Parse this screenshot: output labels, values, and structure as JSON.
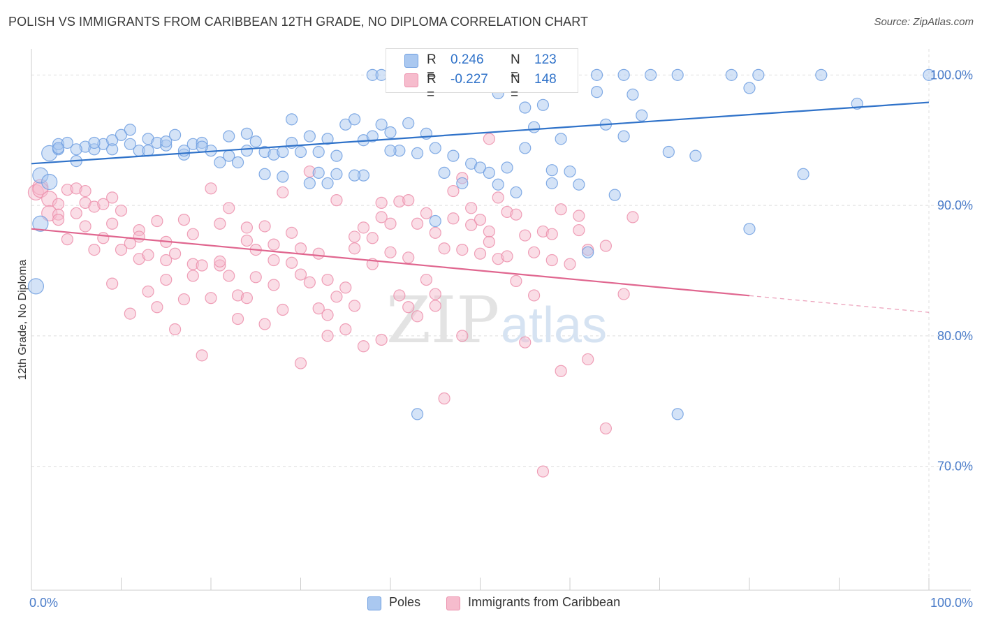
{
  "header": {
    "title": "POLISH VS IMMIGRANTS FROM CARIBBEAN 12TH GRADE, NO DIPLOMA CORRELATION CHART",
    "source": "Source: ZipAtlas.com"
  },
  "watermark": {
    "zip": "ZIP",
    "atlas": "atlas"
  },
  "legend": {
    "rows": [
      {
        "r_label": "R =",
        "r_value": "0.246",
        "n_label": "N =",
        "n_value": "123"
      },
      {
        "r_label": "R =",
        "r_value": "-0.227",
        "n_label": "N =",
        "n_value": "148"
      }
    ]
  },
  "bottom_legend": {
    "poles": "Poles",
    "caribbean": "Immigrants from Caribbean"
  },
  "colors": {
    "blue_fill": "#aac8f0",
    "blue_stroke": "#6d9ee0",
    "blue_line": "#2f72c9",
    "pink_fill": "#f6bccd",
    "pink_stroke": "#ec8fac",
    "pink_line": "#e0668f",
    "tick_text": "#4a7cc9",
    "grid": "#dddddd"
  },
  "chart_data": {
    "type": "scatter",
    "title": "POLISH VS IMMIGRANTS FROM CARIBBEAN 12TH GRADE, NO DIPLOMA CORRELATION CHART",
    "xlabel": "",
    "ylabel": "12th Grade, No Diploma",
    "xlim": [
      0,
      100
    ],
    "ylim": [
      60.5,
      102
    ],
    "x_tick_labels": [
      "0.0%",
      "100.0%"
    ],
    "y_ticks": [
      70,
      80,
      90,
      100
    ],
    "y_tick_labels": [
      "70.0%",
      "80.0%",
      "90.0%",
      "100.0%"
    ],
    "grid": true,
    "legend_position": "top-center",
    "series": [
      {
        "name": "Poles",
        "r": 0.246,
        "n": 123,
        "trend": {
          "x": [
            0,
            100
          ],
          "y": [
            93.2,
            97.9
          ],
          "dashed_from": null
        },
        "points": [
          [
            1,
            92.3
          ],
          [
            1,
            88.6
          ],
          [
            0.5,
            83.8
          ],
          [
            2,
            94
          ],
          [
            3,
            94.3
          ],
          [
            3,
            94.7
          ],
          [
            4,
            94.8
          ],
          [
            5,
            93.4
          ],
          [
            6,
            94.5
          ],
          [
            7,
            94.3
          ],
          [
            8,
            94.7
          ],
          [
            9,
            95
          ],
          [
            10,
            95.4
          ],
          [
            11,
            95.8
          ],
          [
            12,
            94.2
          ],
          [
            13,
            95.1
          ],
          [
            14,
            94.8
          ],
          [
            15,
            94.6
          ],
          [
            16,
            95.4
          ],
          [
            17,
            93.9
          ],
          [
            18,
            94.7
          ],
          [
            19,
            94.8
          ],
          [
            20,
            94.2
          ],
          [
            21,
            93.3
          ],
          [
            22,
            95.3
          ],
          [
            23,
            93.3
          ],
          [
            24,
            95.5
          ],
          [
            25,
            94.9
          ],
          [
            26,
            94.1
          ],
          [
            27,
            93.9
          ],
          [
            28,
            94.1
          ],
          [
            29,
            94.8
          ],
          [
            29,
            96.6
          ],
          [
            30,
            94.1
          ],
          [
            31,
            95.3
          ],
          [
            32,
            94.1
          ],
          [
            32,
            92.5
          ],
          [
            33,
            95.1
          ],
          [
            34,
            92.4
          ],
          [
            35,
            96.2
          ],
          [
            36,
            96.6
          ],
          [
            37,
            95
          ],
          [
            37,
            92.3
          ],
          [
            38,
            95.3
          ],
          [
            39,
            96.2
          ],
          [
            40,
            95.6
          ],
          [
            41,
            94.2
          ],
          [
            42,
            96.3
          ],
          [
            43,
            94
          ],
          [
            44,
            95.5
          ],
          [
            45,
            88.8
          ],
          [
            46,
            92.5
          ],
          [
            47,
            93.8
          ],
          [
            48,
            91.7
          ],
          [
            49,
            93.2
          ],
          [
            50,
            92.9
          ],
          [
            51,
            92.5
          ],
          [
            52,
            98.6
          ],
          [
            53,
            92.9
          ],
          [
            54,
            91
          ],
          [
            55,
            97.5
          ],
          [
            56,
            96
          ],
          [
            57,
            97.7
          ],
          [
            58,
            91.7
          ],
          [
            59,
            95.1
          ],
          [
            60,
            92.6
          ],
          [
            61,
            91.6
          ],
          [
            62,
            86.4
          ],
          [
            63,
            98.7
          ],
          [
            64,
            96.2
          ],
          [
            65,
            90.8
          ],
          [
            66,
            95.3
          ],
          [
            67,
            98.5
          ],
          [
            68,
            96.9
          ],
          [
            71,
            94.1
          ],
          [
            72,
            74
          ],
          [
            74,
            93.8
          ],
          [
            43,
            74
          ],
          [
            80,
            88.2
          ],
          [
            80,
            99
          ],
          [
            81,
            100
          ],
          [
            86,
            92.4
          ],
          [
            88,
            100
          ],
          [
            92,
            97.8
          ],
          [
            100,
            100
          ],
          [
            38,
            100
          ],
          [
            39,
            100
          ],
          [
            41,
            100
          ],
          [
            44,
            100
          ],
          [
            47,
            100
          ],
          [
            49,
            100
          ],
          [
            51,
            100
          ],
          [
            54,
            100
          ],
          [
            57,
            100
          ],
          [
            60,
            100
          ],
          [
            63,
            100
          ],
          [
            66,
            100
          ],
          [
            69,
            100
          ],
          [
            72,
            100
          ],
          [
            78,
            100
          ],
          [
            31,
            91.7
          ],
          [
            28,
            92.2
          ],
          [
            26,
            92.4
          ],
          [
            33,
            91.7
          ],
          [
            36,
            92.3
          ],
          [
            22,
            93.8
          ],
          [
            19,
            94.5
          ],
          [
            17,
            94.2
          ],
          [
            15,
            94.9
          ],
          [
            13,
            94.2
          ],
          [
            11,
            94.7
          ],
          [
            9,
            94.3
          ],
          [
            7,
            94.8
          ],
          [
            5,
            94.3
          ],
          [
            3,
            94.4
          ],
          [
            2,
            91.8
          ],
          [
            24,
            94.2
          ],
          [
            34,
            93.8
          ],
          [
            40,
            94.2
          ],
          [
            45,
            94.4
          ],
          [
            52,
            91.6
          ],
          [
            55,
            94.4
          ],
          [
            58,
            92.7
          ]
        ]
      },
      {
        "name": "Immigrants from Caribbean",
        "r": -0.227,
        "n": 148,
        "trend": {
          "x": [
            0,
            100
          ],
          "y": [
            88.2,
            81.8
          ],
          "dashed_from": 80
        },
        "points": [
          [
            0.5,
            91
          ],
          [
            1,
            91.4
          ],
          [
            1,
            91.2
          ],
          [
            2,
            90.5
          ],
          [
            2,
            89.4
          ],
          [
            3,
            90.1
          ],
          [
            3,
            89.3
          ],
          [
            4,
            87.4
          ],
          [
            4,
            91.2
          ],
          [
            5,
            89.4
          ],
          [
            5,
            91.3
          ],
          [
            6,
            90.2
          ],
          [
            6,
            88.4
          ],
          [
            7,
            89.9
          ],
          [
            7,
            86.6
          ],
          [
            8,
            90.1
          ],
          [
            8,
            87.5
          ],
          [
            9,
            88.6
          ],
          [
            9,
            84
          ],
          [
            10,
            89.6
          ],
          [
            10,
            86.6
          ],
          [
            11,
            87.1
          ],
          [
            11,
            81.7
          ],
          [
            12,
            88.1
          ],
          [
            12,
            85.9
          ],
          [
            13,
            86.2
          ],
          [
            13,
            83.4
          ],
          [
            14,
            88.8
          ],
          [
            14,
            82.2
          ],
          [
            15,
            87.2
          ],
          [
            15,
            84.3
          ],
          [
            16,
            86.3
          ],
          [
            16,
            80.5
          ],
          [
            17,
            88.9
          ],
          [
            17,
            82.8
          ],
          [
            18,
            85.5
          ],
          [
            18,
            84.6
          ],
          [
            19,
            85.4
          ],
          [
            19,
            78.5
          ],
          [
            20,
            91.3
          ],
          [
            20,
            82.9
          ],
          [
            21,
            85.4
          ],
          [
            21,
            88.6
          ],
          [
            22,
            89.8
          ],
          [
            22,
            84.6
          ],
          [
            23,
            83.1
          ],
          [
            23,
            81.3
          ],
          [
            24,
            87.3
          ],
          [
            24,
            88.3
          ],
          [
            25,
            86.6
          ],
          [
            25,
            84.5
          ],
          [
            26,
            88.4
          ],
          [
            26,
            80.9
          ],
          [
            27,
            87
          ],
          [
            27,
            83.9
          ],
          [
            28,
            91
          ],
          [
            28,
            82
          ],
          [
            29,
            87.9
          ],
          [
            29,
            85.6
          ],
          [
            30,
            86.7
          ],
          [
            30,
            77.9
          ],
          [
            31,
            92.6
          ],
          [
            31,
            84.1
          ],
          [
            32,
            86.3
          ],
          [
            32,
            82.1
          ],
          [
            33,
            84.3
          ],
          [
            33,
            80
          ],
          [
            34,
            83
          ],
          [
            34,
            90.4
          ],
          [
            35,
            83.7
          ],
          [
            35,
            80.5
          ],
          [
            36,
            86.7
          ],
          [
            36,
            82.3
          ],
          [
            37,
            88.3
          ],
          [
            37,
            79.2
          ],
          [
            38,
            87.5
          ],
          [
            38,
            85.5
          ],
          [
            39,
            89.1
          ],
          [
            39,
            79.7
          ],
          [
            40,
            88.6
          ],
          [
            40,
            86.4
          ],
          [
            41,
            83.1
          ],
          [
            41,
            90.3
          ],
          [
            42,
            86
          ],
          [
            42,
            82.2
          ],
          [
            43,
            88.6
          ],
          [
            43,
            81.5
          ],
          [
            44,
            89.4
          ],
          [
            44,
            84.3
          ],
          [
            45,
            87.9
          ],
          [
            45,
            82.3
          ],
          [
            46,
            86.7
          ],
          [
            46,
            75.2
          ],
          [
            47,
            91.1
          ],
          [
            47,
            89
          ],
          [
            48,
            86.6
          ],
          [
            48,
            80
          ],
          [
            49,
            89.8
          ],
          [
            49,
            88.5
          ],
          [
            50,
            88.9
          ],
          [
            50,
            86.3
          ],
          [
            51,
            88
          ],
          [
            51,
            87.2
          ],
          [
            52,
            90.6
          ],
          [
            52,
            85.9
          ],
          [
            53,
            89.5
          ],
          [
            53,
            86.1
          ],
          [
            54,
            89.3
          ],
          [
            54,
            84.2
          ],
          [
            55,
            87.7
          ],
          [
            55,
            79.5
          ],
          [
            56,
            86.4
          ],
          [
            56,
            83.1
          ],
          [
            57,
            88
          ],
          [
            57,
            69.6
          ],
          [
            58,
            87.8
          ],
          [
            58,
            85.8
          ],
          [
            59,
            89.7
          ],
          [
            59,
            77.3
          ],
          [
            60,
            85.5
          ],
          [
            61,
            88.1
          ],
          [
            61,
            89.2
          ],
          [
            62,
            86.6
          ],
          [
            64,
            86.9
          ],
          [
            66,
            83.2
          ],
          [
            67,
            89.1
          ],
          [
            62,
            78.2
          ],
          [
            64,
            72.9
          ],
          [
            3,
            88.9
          ],
          [
            6,
            91.1
          ],
          [
            9,
            90.6
          ],
          [
            12,
            87.6
          ],
          [
            15,
            85.8
          ],
          [
            18,
            87.8
          ],
          [
            21,
            85.7
          ],
          [
            24,
            82.9
          ],
          [
            27,
            85.8
          ],
          [
            30,
            84.7
          ],
          [
            33,
            81.6
          ],
          [
            36,
            87.6
          ],
          [
            39,
            90.2
          ],
          [
            42,
            90.4
          ],
          [
            45,
            83.2
          ],
          [
            48,
            92.1
          ],
          [
            51,
            95.1
          ]
        ]
      }
    ]
  }
}
